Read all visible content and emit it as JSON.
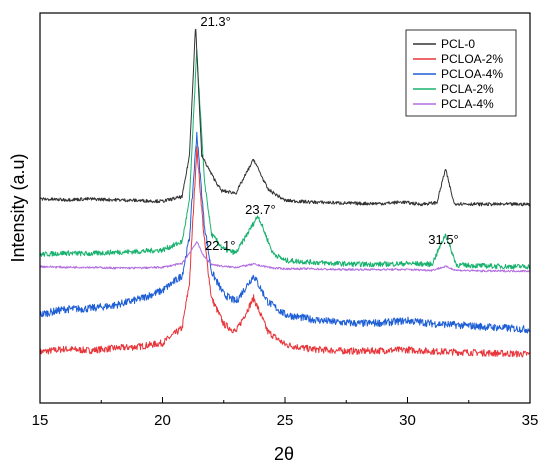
{
  "chart_data": {
    "type": "line",
    "title": "",
    "xlabel": "2θ",
    "ylabel": "Intensity (a.u)",
    "xlim": [
      15,
      35
    ],
    "xticks": [
      15,
      20,
      25,
      30,
      35
    ],
    "yticks_shown": false,
    "grid": false,
    "legend_position": "top-right",
    "annotations": [
      {
        "text": "21.3°",
        "x": 21.3
      },
      {
        "text": "22.1°",
        "x": 22.1
      },
      {
        "text": "23.7°",
        "x": 23.7
      },
      {
        "text": "31.5°",
        "x": 31.5
      }
    ],
    "series": [
      {
        "name": "PCL-0",
        "color": "#333333",
        "baseline": 272,
        "noise": 2.2,
        "peaks": [
          [
            21.35,
            250,
            0.11
          ],
          [
            22.0,
            35,
            0.14
          ],
          [
            23.72,
            55,
            0.18
          ],
          [
            31.55,
            48,
            0.07
          ]
        ],
        "x": [
          15,
          16,
          17,
          18,
          19,
          20,
          20.8,
          21.1,
          21.35,
          21.6,
          22.0,
          22.4,
          23.0,
          23.72,
          24.3,
          25,
          26,
          27,
          28,
          29,
          29.8,
          30.5,
          31.2,
          31.55,
          31.9,
          33,
          34,
          35
        ],
        "y": [
          272,
          271,
          272,
          271,
          270,
          269,
          275,
          330,
          505,
          330,
          305,
          283,
          280,
          325,
          285,
          270,
          268,
          267,
          266,
          266,
          268,
          265,
          267,
          312,
          266,
          265,
          265,
          265
        ]
      },
      {
        "name": "PCLOA-2%",
        "color": "#e8353a",
        "baseline": 66,
        "noise": 4.5,
        "peaks": [
          [
            21.4,
            250,
            0.14
          ],
          [
            23.72,
            62,
            0.2
          ]
        ],
        "x": [
          15,
          16,
          17,
          18,
          19,
          20,
          20.8,
          21.1,
          21.4,
          21.7,
          22.0,
          22.5,
          23.0,
          23.72,
          24.3,
          25,
          26,
          27,
          28,
          29,
          30,
          31,
          32,
          33,
          34,
          35
        ],
        "y": [
          68,
          72,
          70,
          73,
          75,
          80,
          100,
          160,
          340,
          220,
          140,
          105,
          95,
          140,
          95,
          78,
          72,
          70,
          69,
          70,
          71,
          69,
          68,
          67,
          66,
          65
        ]
      },
      {
        "name": "PCLOA-4%",
        "color": "#1f5fd6",
        "baseline": 120,
        "noise": 5.0,
        "peaks": [
          [
            21.4,
            170,
            0.14
          ],
          [
            23.72,
            40,
            0.2
          ]
        ],
        "x": [
          15,
          16,
          17,
          18,
          19,
          20,
          20.8,
          21.1,
          21.4,
          21.7,
          22.0,
          22.5,
          23.0,
          23.72,
          24.3,
          25,
          26,
          27,
          28,
          29,
          30,
          31,
          32,
          33,
          34,
          35
        ],
        "y": [
          118,
          125,
          126,
          130,
          138,
          150,
          170,
          220,
          360,
          240,
          175,
          145,
          135,
          170,
          135,
          118,
          112,
          108,
          106,
          107,
          110,
          106,
          104,
          102,
          100,
          98
        ]
      },
      {
        "name": "PCLA-2%",
        "color": "#18b26e",
        "baseline": 197,
        "noise": 3.4,
        "peaks": [
          [
            21.4,
            275,
            0.13
          ],
          [
            23.9,
            52,
            0.2
          ],
          [
            31.55,
            40,
            0.07
          ]
        ],
        "x": [
          15,
          16,
          17,
          18,
          19,
          20,
          20.8,
          21.1,
          21.4,
          21.7,
          22.0,
          22.5,
          23.0,
          23.9,
          24.5,
          25,
          26,
          27,
          28,
          29,
          30,
          31,
          31.55,
          32,
          33,
          34,
          35
        ],
        "y": [
          198,
          200,
          199,
          201,
          202,
          204,
          215,
          270,
          470,
          300,
          225,
          205,
          200,
          250,
          200,
          190,
          188,
          186,
          185,
          185,
          186,
          185,
          225,
          184,
          183,
          182,
          182
        ]
      },
      {
        "name": "PCLA-4%",
        "color": "#b26ee0",
        "baseline": 180,
        "noise": 1.3,
        "peaks": [
          [
            21.4,
            35,
            0.2
          ]
        ],
        "x": [
          15,
          16,
          17,
          18,
          19,
          20,
          20.8,
          21.1,
          21.4,
          21.7,
          22.0,
          22.5,
          23.0,
          23.72,
          24.5,
          25,
          26,
          27,
          28,
          29,
          30,
          31,
          31.55,
          32,
          33,
          34,
          35
        ],
        "y": [
          182,
          181,
          181,
          180,
          180,
          181,
          186,
          200,
          215,
          195,
          185,
          182,
          181,
          185,
          180,
          179,
          179,
          178,
          178,
          178,
          178,
          177,
          182,
          177,
          176,
          176,
          176
        ]
      }
    ]
  }
}
